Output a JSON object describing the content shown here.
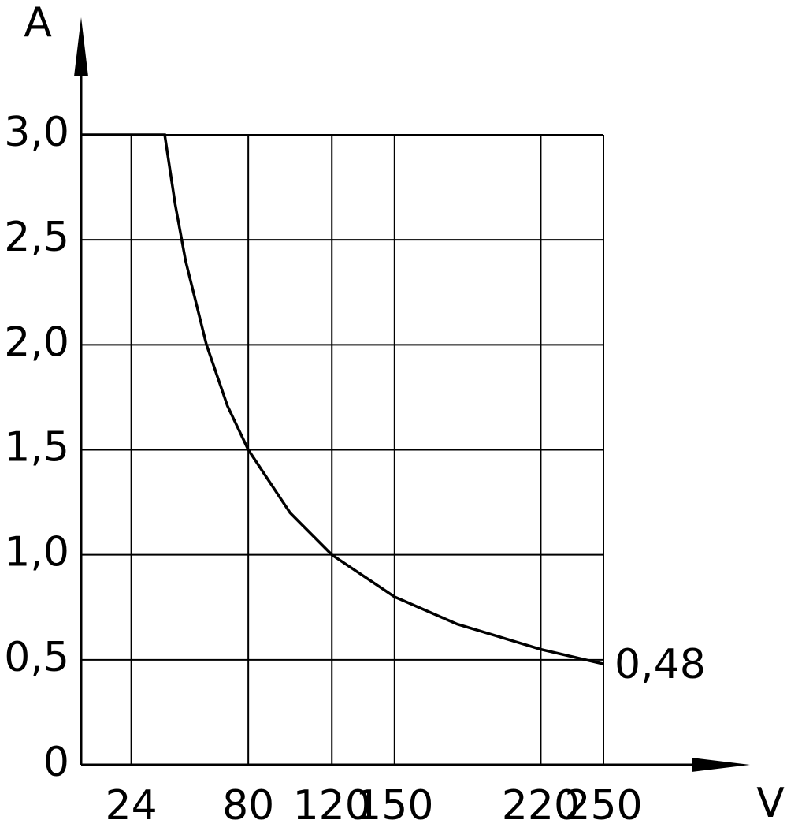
{
  "chart_data": {
    "type": "line",
    "x_label": "V",
    "y_label": "A",
    "x": [
      0,
      40,
      45,
      50,
      60,
      70,
      80,
      100,
      120,
      150,
      180,
      220,
      250
    ],
    "series": [
      {
        "color": "#000000",
        "values": [
          3.0,
          3.0,
          2.67,
          2.4,
          2.0,
          1.71,
          1.5,
          1.2,
          1.0,
          0.8,
          0.67,
          0.55,
          0.48
        ],
        "value_labels": [
          null,
          null,
          null,
          null,
          null,
          null,
          null,
          null,
          null,
          null,
          null,
          null,
          "0,48"
        ]
      }
    ],
    "xlim": [
      0,
      250
    ],
    "ylim": [
      0,
      3.0
    ],
    "xticks": [
      24,
      80,
      120,
      150,
      220,
      250
    ],
    "yticks": [
      0,
      {
        "value": 0.5,
        "label": "0,5"
      },
      {
        "value": 1.0,
        "label": "1,0"
      },
      {
        "value": 1.5,
        "label": "1,5"
      },
      {
        "value": 2.0,
        "label": "2,0"
      },
      {
        "value": 2.5,
        "label": "2,5"
      },
      {
        "value": 3.0,
        "label": "3,0"
      }
    ],
    "grid": true
  }
}
